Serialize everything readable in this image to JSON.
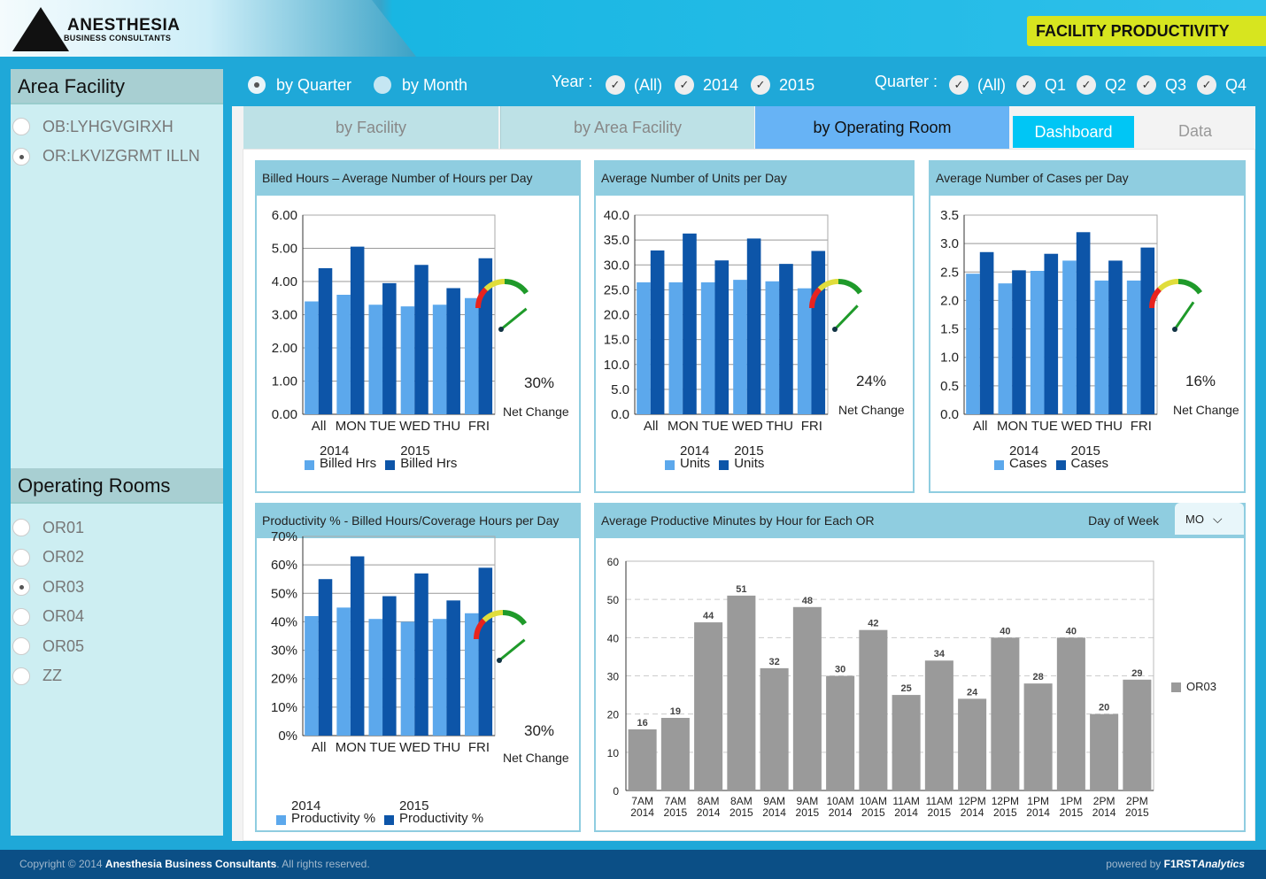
{
  "header": {
    "logo_main": "ANESTHESIA",
    "logo_sub": "BUSINESS CONSULTANTS",
    "title": "FACILITY PRODUCTIVITY"
  },
  "sidebar": {
    "area_title": "Area Facility",
    "area_items": [
      {
        "label": "OB:LYHGVGIRXH",
        "selected": false
      },
      {
        "label": "OR:LKVIZGRMT ILLN",
        "selected": true
      }
    ],
    "or_title": "Operating Rooms",
    "or_items": [
      {
        "label": "OR01",
        "selected": false
      },
      {
        "label": "OR02",
        "selected": false
      },
      {
        "label": "OR03",
        "selected": true
      },
      {
        "label": "OR04",
        "selected": false
      },
      {
        "label": "OR05",
        "selected": false
      },
      {
        "label": "ZZ",
        "selected": false
      }
    ]
  },
  "filters": {
    "by_quarter": "by Quarter",
    "by_month": "by Month",
    "year_label": "Year :",
    "years": [
      "(All)",
      "2014",
      "2015"
    ],
    "quarter_label": "Quarter :",
    "quarters": [
      "(All)",
      "Q1",
      "Q2",
      "Q3",
      "Q4"
    ]
  },
  "tabs": [
    "by Facility",
    "by Area Facility",
    "by Operating Room"
  ],
  "view_tabs": {
    "dashboard": "Dashboard",
    "data": "Data"
  },
  "colors": {
    "s2014": "#5ca8ec",
    "s2015": "#0d55a8",
    "gray": "#9a9a9a"
  },
  "gauge_net_label": "Net Change",
  "chart_data": [
    {
      "type": "bar",
      "title": "Billed Hours – Average Number of Hours per Day",
      "categories": [
        "All",
        "MON",
        "TUE",
        "WED",
        "THU",
        "FRI"
      ],
      "yticks": [
        "0.00",
        "1.00",
        "2.00",
        "3.00",
        "4.00",
        "5.00",
        "6.00"
      ],
      "ylim": [
        0,
        6
      ],
      "series": [
        {
          "name": "2014 Billed Hrs",
          "line1": "2014",
          "line2": "Billed Hrs",
          "values": [
            3.4,
            3.6,
            3.3,
            3.25,
            3.3,
            3.5
          ]
        },
        {
          "name": "2015 Billed Hrs",
          "line1": "2015",
          "line2": "Billed Hrs",
          "values": [
            4.4,
            5.05,
            3.95,
            4.5,
            3.8,
            4.7
          ]
        }
      ],
      "net_change": "30%",
      "net_value": 0.3
    },
    {
      "type": "bar",
      "title": "Average Number of Units per Day",
      "categories": [
        "All",
        "MON",
        "TUE",
        "WED",
        "THU",
        "FRI"
      ],
      "yticks": [
        "0.0",
        "5.0",
        "10.0",
        "15.0",
        "20.0",
        "25.0",
        "30.0",
        "35.0",
        "40.0"
      ],
      "ylim": [
        0,
        40
      ],
      "series": [
        {
          "name": "2014 Units",
          "line1": "2014",
          "line2": "Units",
          "values": [
            26.5,
            26.5,
            26.5,
            27,
            26.7,
            25.3
          ]
        },
        {
          "name": "2015 Units",
          "line1": "2015",
          "line2": "Units",
          "values": [
            32.9,
            36.3,
            30.9,
            35.3,
            30.2,
            32.8
          ]
        }
      ],
      "net_change": "24%",
      "net_value": 0.24
    },
    {
      "type": "bar",
      "title": "Average Number of Cases per Day",
      "categories": [
        "All",
        "MON",
        "TUE",
        "WED",
        "THU",
        "FRI"
      ],
      "yticks": [
        "0.0",
        "0.5",
        "1.0",
        "1.5",
        "2.0",
        "2.5",
        "3.0",
        "3.5"
      ],
      "ylim": [
        0,
        3.5
      ],
      "series": [
        {
          "name": "2014 Cases",
          "line1": "2014",
          "line2": "Cases",
          "values": [
            2.47,
            2.3,
            2.52,
            2.7,
            2.35,
            2.35
          ]
        },
        {
          "name": "2015 Cases",
          "line1": "2015",
          "line2": "Cases",
          "values": [
            2.85,
            2.53,
            2.82,
            3.2,
            2.7,
            2.93
          ]
        }
      ],
      "net_change": "16%",
      "net_value": 0.16
    },
    {
      "type": "bar",
      "title": "Productivity % - Billed Hours/Coverage Hours per Day",
      "categories": [
        "All",
        "MON",
        "TUE",
        "WED",
        "THU",
        "FRI"
      ],
      "yticks": [
        "0%",
        "10%",
        "20%",
        "30%",
        "40%",
        "50%",
        "60%",
        "70%"
      ],
      "ylim": [
        0,
        70
      ],
      "series": [
        {
          "name": "2014 Productivity %",
          "line1": "2014",
          "line2": "Productivity %",
          "values": [
            42,
            45,
            41,
            40,
            41,
            43
          ]
        },
        {
          "name": "2015 Productivity %",
          "line1": "2015",
          "line2": "Productivity %",
          "values": [
            55,
            63,
            49,
            57,
            47.5,
            59
          ]
        }
      ],
      "net_change": "30%",
      "net_value": 0.3
    },
    {
      "type": "bar",
      "title": "Average Productive Minutes by Hour for Each OR",
      "filter_label": "Day of Week",
      "filter_value": "MO",
      "categories": [
        [
          "7AM",
          "2014"
        ],
        [
          "7AM",
          "2015"
        ],
        [
          "8AM",
          "2014"
        ],
        [
          "8AM",
          "2015"
        ],
        [
          "9AM",
          "2014"
        ],
        [
          "9AM",
          "2015"
        ],
        [
          "10AM",
          "2014"
        ],
        [
          "10AM",
          "2015"
        ],
        [
          "11AM",
          "2014"
        ],
        [
          "11AM",
          "2015"
        ],
        [
          "12PM",
          "2014"
        ],
        [
          "12PM",
          "2015"
        ],
        [
          "1PM",
          "2014"
        ],
        [
          "1PM",
          "2015"
        ],
        [
          "2PM",
          "2014"
        ],
        [
          "2PM",
          "2015"
        ]
      ],
      "yticks": [
        "0",
        "10",
        "20",
        "30",
        "40",
        "50",
        "60"
      ],
      "ylim": [
        0,
        60
      ],
      "series": [
        {
          "name": "OR03",
          "values": [
            16,
            19,
            44,
            51,
            32,
            48,
            30,
            42,
            25,
            34,
            24,
            40,
            28,
            40,
            20,
            29
          ]
        }
      ]
    }
  ],
  "footer": {
    "copyright_pre": "Copyright © 2014 ",
    "company": "Anesthesia Business Consultants",
    "copyright_post": ". All rights reserved.",
    "powered_pre": "powered by ",
    "brand_a": "F1RST",
    "brand_b": "Analytics"
  }
}
